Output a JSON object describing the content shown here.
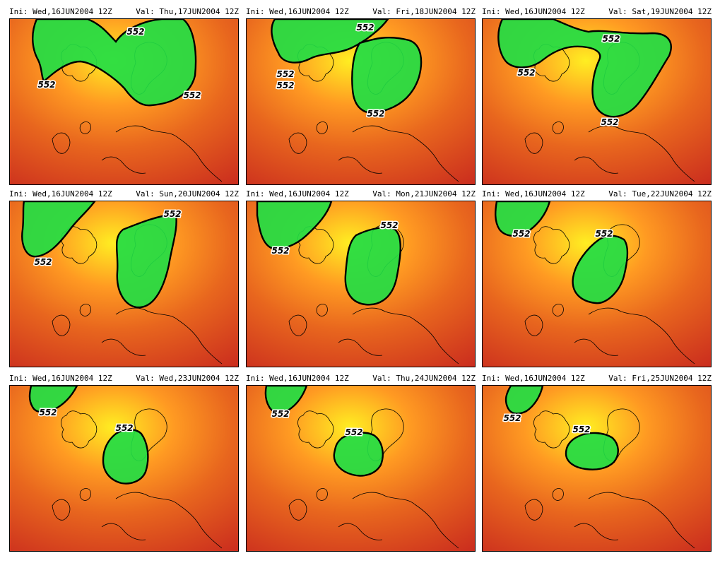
{
  "panels": [
    {
      "ini": "Ini: Wed,16JUN2004 12Z",
      "val": "Val: Thu,17JUN2004 12Z",
      "contour_value": "552"
    },
    {
      "ini": "Ini: Wed,16JUN2004 12Z",
      "val": "Val: Fri,18JUN2004 12Z",
      "contour_value": "552"
    },
    {
      "ini": "Ini: Wed,16JUN2004 12Z",
      "val": "Val: Sat,19JUN2004 12Z",
      "contour_value": "552"
    },
    {
      "ini": "Ini: Wed,16JUN2004 12Z",
      "val": "Val: Sun,20JUN2004 12Z",
      "contour_value": "552"
    },
    {
      "ini": "Ini: Wed,16JUN2004 12Z",
      "val": "Val: Mon,21JUN2004 12Z",
      "contour_value": "552"
    },
    {
      "ini": "Ini: Wed,16JUN2004 12Z",
      "val": "Val: Tue,22JUN2004 12Z",
      "contour_value": "552"
    },
    {
      "ini": "Ini: Wed,16JUN2004 12Z",
      "val": "Val: Wed,23JUN2004 12Z",
      "contour_value": "552"
    },
    {
      "ini": "Ini: Wed,16JUN2004 12Z",
      "val": "Val: Thu,24JUN2004 12Z",
      "contour_value": "552"
    },
    {
      "ini": "Ini: Wed,16JUN2004 12Z",
      "val": "Val: Fri,25JUN2004 12Z",
      "contour_value": "552"
    }
  ],
  "colors": {
    "cold_fill": "#22dd44",
    "cold_core": "#33cc99",
    "contour_line": "#000000",
    "warm_yellow": "#ffee22",
    "warm_orange": "#ff9a22",
    "warm_dark_orange": "#e8661e",
    "warm_red": "#c8281e",
    "coastline": "#000000"
  }
}
